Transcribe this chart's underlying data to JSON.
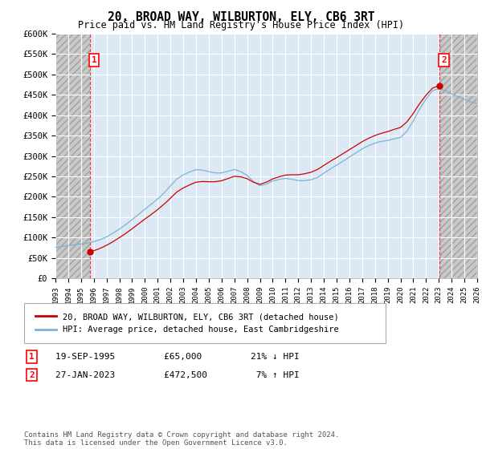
{
  "title": "20, BROAD WAY, WILBURTON, ELY, CB6 3RT",
  "subtitle": "Price paid vs. HM Land Registry's House Price Index (HPI)",
  "ylim": [
    0,
    600000
  ],
  "xlim_start": 1993.0,
  "xlim_end": 2026.0,
  "sale1_x": 1995.72,
  "sale1_y": 65000,
  "sale1_label": "1",
  "sale1_date": "19-SEP-1995",
  "sale1_price": "£65,000",
  "sale1_hpi": "21% ↓ HPI",
  "sale2_x": 2023.07,
  "sale2_y": 472500,
  "sale2_label": "2",
  "sale2_date": "27-JAN-2023",
  "sale2_price": "£472,500",
  "sale2_hpi": "7% ↑ HPI",
  "hpi_color": "#7ab3d4",
  "sale_color": "#cc0000",
  "bg_plot": "#dce9f5",
  "bg_figure": "#ffffff",
  "grid_color": "#ffffff",
  "legend_label_sale": "20, BROAD WAY, WILBURTON, ELY, CB6 3RT (detached house)",
  "legend_label_hpi": "HPI: Average price, detached house, East Cambridgeshire",
  "footer": "Contains HM Land Registry data © Crown copyright and database right 2024.\nThis data is licensed under the Open Government Licence v3.0."
}
